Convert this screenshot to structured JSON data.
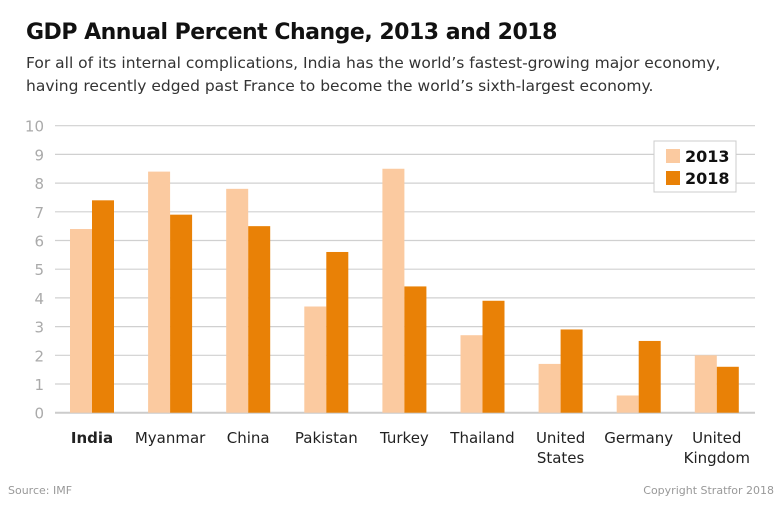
{
  "title": "GDP Annual Percent Change, 2013 and 2018",
  "subtitle": "For all of its internal complications, India has the world’s fastest-growing major economy, having recently edged past France to become the world’s sixth-largest economy.",
  "source": "Source: IMF",
  "copyright": "Copyright Stratfor 2018",
  "chart_data": {
    "type": "bar",
    "title": "GDP Annual Percent Change, 2013 and 2018",
    "categories": [
      "India",
      "Myanmar",
      "China",
      "Pakistan",
      "Turkey",
      "Thailand",
      "United States",
      "Germany",
      "United Kingdom"
    ],
    "highlighted_category": "India",
    "series": [
      {
        "name": "2013",
        "color": "#fbcaa0",
        "values": [
          6.4,
          8.4,
          7.8,
          3.7,
          8.5,
          2.7,
          1.7,
          0.6,
          2.0
        ]
      },
      {
        "name": "2018",
        "color": "#e98106",
        "values": [
          7.4,
          6.9,
          6.5,
          5.6,
          4.4,
          3.9,
          2.9,
          2.5,
          1.6
        ]
      }
    ],
    "ylim": [
      0,
      10
    ],
    "yticks": [
      0,
      1,
      2,
      3,
      4,
      5,
      6,
      7,
      8,
      9,
      10
    ],
    "grid": true,
    "legend": "top-right",
    "xlabel": "",
    "ylabel": ""
  }
}
